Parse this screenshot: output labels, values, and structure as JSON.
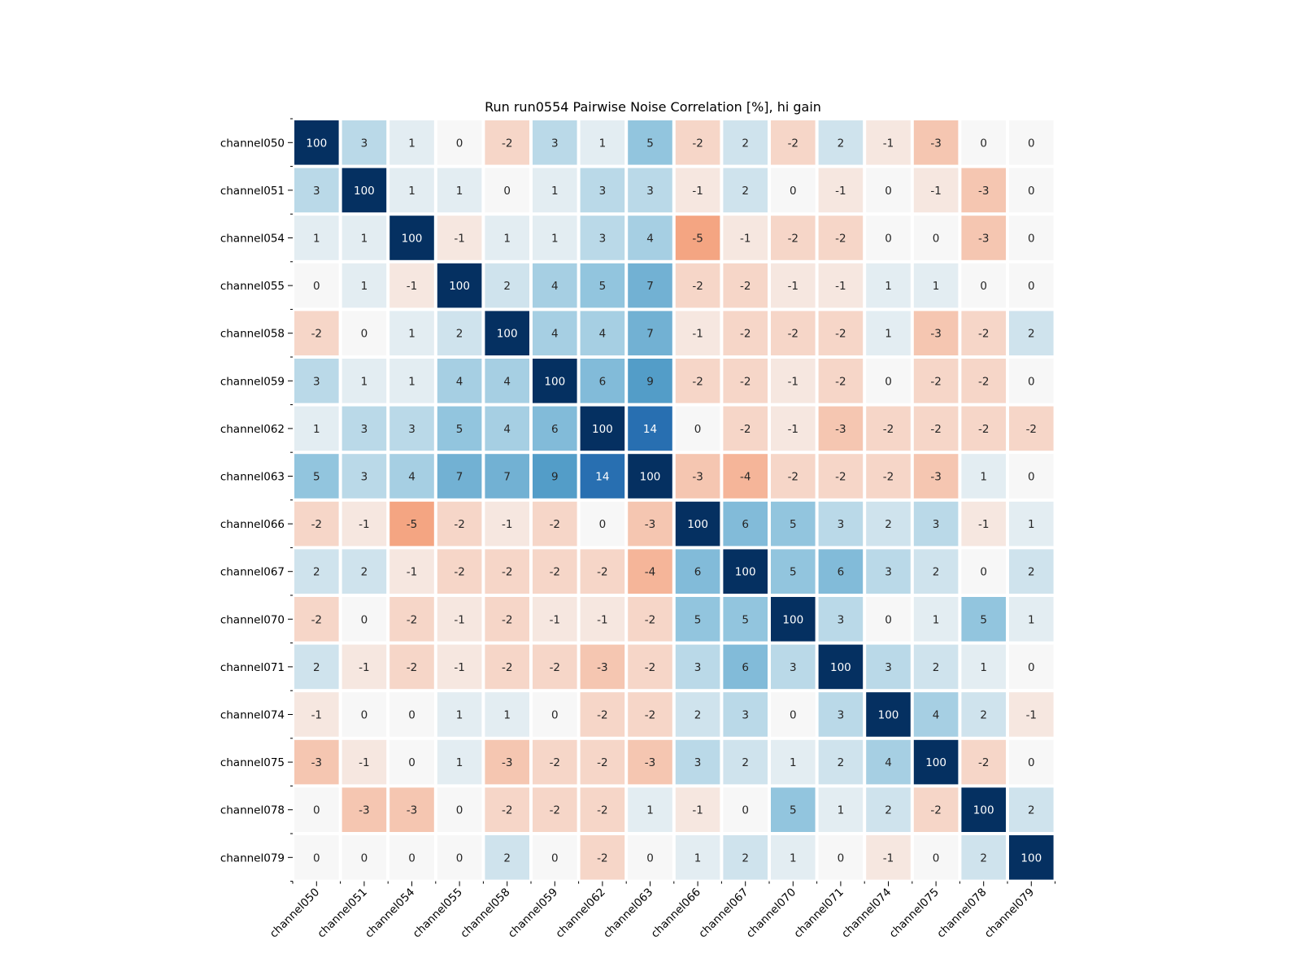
{
  "chart_data": {
    "type": "heatmap",
    "title": "Run run0554 Pairwise Noise Correlation [%], hi gain",
    "labels": [
      "channel050",
      "channel051",
      "channel054",
      "channel055",
      "channel058",
      "channel059",
      "channel062",
      "channel063",
      "channel066",
      "channel067",
      "channel070",
      "channel071",
      "channel074",
      "channel075",
      "channel078",
      "channel079"
    ],
    "values": [
      [
        100,
        3,
        1,
        0,
        -2,
        3,
        1,
        5,
        -2,
        2,
        -2,
        2,
        -1,
        -3,
        0,
        0
      ],
      [
        3,
        100,
        1,
        1,
        0,
        1,
        3,
        3,
        -1,
        2,
        0,
        -1,
        0,
        -1,
        -3,
        0
      ],
      [
        1,
        1,
        100,
        -1,
        1,
        1,
        3,
        4,
        -5,
        -1,
        -2,
        -2,
        0,
        0,
        -3,
        0
      ],
      [
        0,
        1,
        -1,
        100,
        2,
        4,
        5,
        7,
        -2,
        -2,
        -1,
        -1,
        1,
        1,
        0,
        0
      ],
      [
        -2,
        0,
        1,
        2,
        100,
        4,
        4,
        7,
        -1,
        -2,
        -2,
        -2,
        1,
        -3,
        -2,
        2
      ],
      [
        3,
        1,
        1,
        4,
        4,
        100,
        6,
        9,
        -2,
        -2,
        -1,
        -2,
        0,
        -2,
        -2,
        0
      ],
      [
        1,
        3,
        3,
        5,
        4,
        6,
        100,
        14,
        0,
        -2,
        -1,
        -3,
        -2,
        -2,
        -2,
        -2
      ],
      [
        5,
        3,
        4,
        7,
        7,
        9,
        14,
        100,
        -3,
        -4,
        -2,
        -2,
        -2,
        -3,
        1,
        0
      ],
      [
        -2,
        -1,
        -5,
        -2,
        -1,
        -2,
        0,
        -3,
        100,
        6,
        5,
        3,
        2,
        3,
        -1,
        1
      ],
      [
        2,
        2,
        -1,
        -2,
        -2,
        -2,
        -2,
        -4,
        6,
        100,
        5,
        6,
        3,
        2,
        0,
        2
      ],
      [
        -2,
        0,
        -2,
        -1,
        -2,
        -1,
        -1,
        -2,
        5,
        5,
        100,
        3,
        0,
        1,
        5,
        1
      ],
      [
        2,
        -1,
        -2,
        -1,
        -2,
        -2,
        -3,
        -2,
        3,
        6,
        3,
        100,
        3,
        2,
        1,
        0
      ],
      [
        -1,
        0,
        0,
        1,
        1,
        0,
        -2,
        -2,
        2,
        3,
        0,
        3,
        100,
        4,
        2,
        -1
      ],
      [
        -3,
        -1,
        0,
        1,
        -3,
        -2,
        -2,
        -3,
        3,
        2,
        1,
        2,
        4,
        100,
        -2,
        0
      ],
      [
        0,
        -3,
        -3,
        0,
        -2,
        -2,
        -2,
        1,
        -1,
        0,
        5,
        1,
        2,
        -2,
        100,
        2
      ],
      [
        0,
        0,
        0,
        0,
        2,
        0,
        -2,
        0,
        1,
        2,
        1,
        0,
        -1,
        0,
        2,
        100
      ]
    ],
    "colormap": "RdBu_r",
    "color_range": [
      -20,
      20
    ],
    "colors": {
      "strong_positive": "#053061",
      "neutral": "#f7f7f7",
      "negative": "#f4a582"
    },
    "grid": false,
    "legend": "none"
  }
}
